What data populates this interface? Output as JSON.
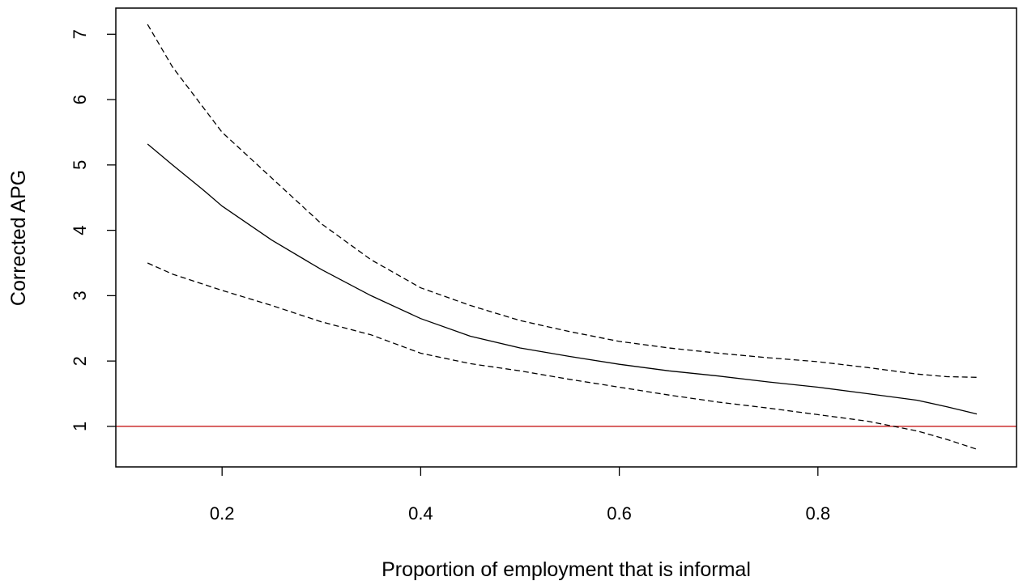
{
  "chart_data": {
    "type": "line",
    "title": "",
    "xlabel": "Proportion of employment that is informal",
    "ylabel": "Corrected APG",
    "xlim": [
      0.093,
      1.0
    ],
    "ylim": [
      0.38,
      7.4
    ],
    "x_ticks": [
      {
        "value": 0.2,
        "label": "0.2"
      },
      {
        "value": 0.4,
        "label": "0.4"
      },
      {
        "value": 0.6,
        "label": "0.6"
      },
      {
        "value": 0.8,
        "label": "0.8"
      }
    ],
    "y_ticks": [
      {
        "value": 1,
        "label": "1"
      },
      {
        "value": 2,
        "label": "2"
      },
      {
        "value": 3,
        "label": "3"
      },
      {
        "value": 4,
        "label": "4"
      },
      {
        "value": 5,
        "label": "5"
      },
      {
        "value": 6,
        "label": "6"
      },
      {
        "value": 7,
        "label": "7"
      }
    ],
    "reference_line": {
      "y": 1,
      "color": "#cc2e2e"
    },
    "grid": false,
    "legend": "none",
    "series": [
      {
        "style": "solid",
        "color": "#000000",
        "points": [
          [
            0.125,
            5.32
          ],
          [
            0.15,
            5.0
          ],
          [
            0.18,
            4.63
          ],
          [
            0.2,
            4.37
          ],
          [
            0.25,
            3.85
          ],
          [
            0.3,
            3.4
          ],
          [
            0.35,
            3.0
          ],
          [
            0.4,
            2.65
          ],
          [
            0.45,
            2.38
          ],
          [
            0.5,
            2.2
          ],
          [
            0.55,
            2.07
          ],
          [
            0.6,
            1.95
          ],
          [
            0.65,
            1.85
          ],
          [
            0.7,
            1.77
          ],
          [
            0.75,
            1.68
          ],
          [
            0.8,
            1.6
          ],
          [
            0.85,
            1.5
          ],
          [
            0.9,
            1.4
          ],
          [
            0.93,
            1.3
          ],
          [
            0.96,
            1.19
          ]
        ]
      },
      {
        "style": "dashed",
        "color": "#000000",
        "points": [
          [
            0.125,
            7.15
          ],
          [
            0.15,
            6.5
          ],
          [
            0.18,
            5.9
          ],
          [
            0.2,
            5.5
          ],
          [
            0.25,
            4.8
          ],
          [
            0.3,
            4.1
          ],
          [
            0.35,
            3.55
          ],
          [
            0.4,
            3.12
          ],
          [
            0.45,
            2.85
          ],
          [
            0.5,
            2.62
          ],
          [
            0.55,
            2.45
          ],
          [
            0.6,
            2.3
          ],
          [
            0.65,
            2.2
          ],
          [
            0.7,
            2.12
          ],
          [
            0.75,
            2.05
          ],
          [
            0.8,
            1.99
          ],
          [
            0.85,
            1.9
          ],
          [
            0.9,
            1.8
          ],
          [
            0.93,
            1.76
          ],
          [
            0.96,
            1.75
          ]
        ]
      },
      {
        "style": "dashed",
        "color": "#000000",
        "points": [
          [
            0.125,
            3.5
          ],
          [
            0.15,
            3.33
          ],
          [
            0.2,
            3.08
          ],
          [
            0.25,
            2.85
          ],
          [
            0.3,
            2.6
          ],
          [
            0.35,
            2.4
          ],
          [
            0.4,
            2.12
          ],
          [
            0.45,
            1.96
          ],
          [
            0.5,
            1.85
          ],
          [
            0.55,
            1.72
          ],
          [
            0.6,
            1.6
          ],
          [
            0.65,
            1.48
          ],
          [
            0.7,
            1.37
          ],
          [
            0.75,
            1.28
          ],
          [
            0.8,
            1.18
          ],
          [
            0.85,
            1.08
          ],
          [
            0.9,
            0.93
          ],
          [
            0.93,
            0.8
          ],
          [
            0.96,
            0.65
          ]
        ]
      }
    ]
  }
}
